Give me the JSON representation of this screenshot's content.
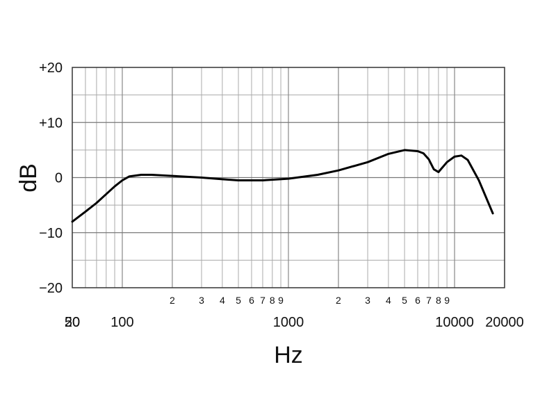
{
  "chart_data": {
    "type": "line",
    "title": "",
    "xlabel": "Hz",
    "ylabel": "dB",
    "xscale": "log",
    "xlim": [
      50,
      20000
    ],
    "ylim": [
      -20,
      20
    ],
    "grid": true,
    "x_major_tick_labels": [
      {
        "value": 20,
        "label": "20"
      },
      {
        "value": 50,
        "label": "50"
      },
      {
        "value": 100,
        "label": "100"
      },
      {
        "value": 1000,
        "label": "1000"
      },
      {
        "value": 10000,
        "label": "10000"
      },
      {
        "value": 20000,
        "label": "20000"
      }
    ],
    "x_minor_tick_labels": [
      {
        "value": 200,
        "label": "2"
      },
      {
        "value": 300,
        "label": "3"
      },
      {
        "value": 400,
        "label": "4"
      },
      {
        "value": 500,
        "label": "5"
      },
      {
        "value": 600,
        "label": "6"
      },
      {
        "value": 700,
        "label": "7"
      },
      {
        "value": 800,
        "label": "8"
      },
      {
        "value": 900,
        "label": "9"
      },
      {
        "value": 2000,
        "label": "2"
      },
      {
        "value": 3000,
        "label": "3"
      },
      {
        "value": 4000,
        "label": "4"
      },
      {
        "value": 5000,
        "label": "5"
      },
      {
        "value": 6000,
        "label": "6"
      },
      {
        "value": 7000,
        "label": "7"
      },
      {
        "value": 8000,
        "label": "8"
      },
      {
        "value": 9000,
        "label": "9"
      }
    ],
    "y_tick_labels": [
      {
        "value": 20,
        "label": "+20"
      },
      {
        "value": 10,
        "label": "+10"
      },
      {
        "value": 0,
        "label": "0"
      },
      {
        "value": -10,
        "label": "−10"
      },
      {
        "value": -20,
        "label": "−20"
      }
    ],
    "series": [
      {
        "color": "#000000",
        "x": [
          50,
          60,
          70,
          80,
          90,
          100,
          110,
          130,
          150,
          200,
          300,
          400,
          500,
          700,
          1000,
          1500,
          2000,
          3000,
          4000,
          5000,
          6000,
          6500,
          7000,
          7500,
          8000,
          9000,
          10000,
          11000,
          12000,
          14000,
          17000
        ],
        "y": [
          -8,
          -6.2,
          -4.6,
          -3.0,
          -1.6,
          -0.5,
          0.2,
          0.5,
          0.5,
          0.3,
          0,
          -0.3,
          -0.5,
          -0.5,
          -0.2,
          0.5,
          1.3,
          2.8,
          4.3,
          5.0,
          4.8,
          4.4,
          3.3,
          1.5,
          1.0,
          2.8,
          3.8,
          4.0,
          3.2,
          -0.5,
          -6.5
        ]
      }
    ]
  }
}
